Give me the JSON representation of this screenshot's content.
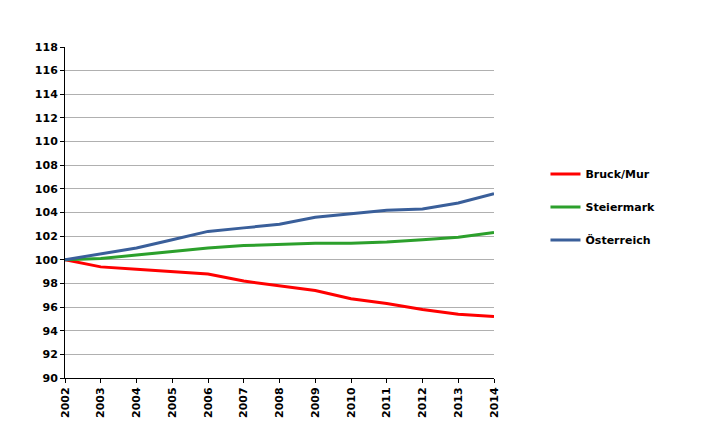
{
  "chart_data": {
    "type": "line",
    "x": [
      2002,
      2003,
      2004,
      2005,
      2006,
      2007,
      2008,
      2009,
      2010,
      2011,
      2012,
      2013,
      2014
    ],
    "series": [
      {
        "name": "Bruck/Mur",
        "color": "#ff0000",
        "values": [
          100,
          99.4,
          99.2,
          99.0,
          98.8,
          98.2,
          97.8,
          97.4,
          96.7,
          96.3,
          95.8,
          95.4,
          95.2
        ]
      },
      {
        "name": "Steiermark",
        "color": "#2ca02c",
        "values": [
          100,
          100.1,
          100.4,
          100.7,
          101.0,
          101.2,
          101.3,
          101.4,
          101.4,
          101.5,
          101.7,
          101.9,
          102.3
        ]
      },
      {
        "name": "Österreich",
        "color": "#3a5f9a",
        "values": [
          100,
          100.5,
          101.0,
          101.7,
          102.4,
          102.7,
          103.0,
          103.6,
          103.9,
          104.2,
          104.3,
          104.8,
          105.6
        ]
      }
    ],
    "xlim": [
      2002,
      2014
    ],
    "xticks": [
      2002,
      2003,
      2004,
      2005,
      2006,
      2007,
      2008,
      2009,
      2010,
      2011,
      2012,
      2013,
      2014
    ],
    "ylim": [
      90,
      118
    ],
    "yticks": [
      90,
      92,
      94,
      96,
      98,
      100,
      102,
      104,
      106,
      108,
      110,
      112,
      114,
      116,
      118
    ],
    "grid": true,
    "legend": "right"
  }
}
